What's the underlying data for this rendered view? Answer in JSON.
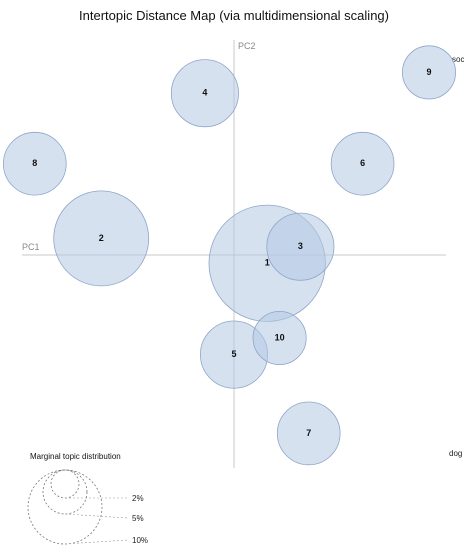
{
  "chart_data": {
    "type": "scatter",
    "title": "Intertopic Distance Map (via multidimensional scaling)",
    "xlabel": "PC1",
    "ylabel": "PC2",
    "xlim": [
      -0.27,
      0.27
    ],
    "ylim": [
      -0.27,
      0.27
    ],
    "edge_labels": [
      "soc",
      "dog"
    ],
    "topics": [
      {
        "label": "1",
        "x": 0.04,
        "y": -0.01,
        "size": 0.12
      },
      {
        "label": "2",
        "x": -0.16,
        "y": 0.02,
        "size": 0.08
      },
      {
        "label": "3",
        "x": 0.08,
        "y": 0.01,
        "size": 0.04
      },
      {
        "label": "4",
        "x": -0.035,
        "y": 0.195,
        "size": 0.04
      },
      {
        "label": "5",
        "x": 0.0,
        "y": -0.12,
        "size": 0.04
      },
      {
        "label": "6",
        "x": 0.155,
        "y": 0.11,
        "size": 0.035
      },
      {
        "label": "7",
        "x": 0.09,
        "y": -0.215,
        "size": 0.035
      },
      {
        "label": "8",
        "x": -0.24,
        "y": 0.11,
        "size": 0.035
      },
      {
        "label": "9",
        "x": 0.235,
        "y": 0.22,
        "size": 0.025
      },
      {
        "label": "10",
        "x": 0.055,
        "y": -0.1,
        "size": 0.025
      }
    ],
    "legend": {
      "title": "Marginal topic distribution",
      "levels": [
        "2%",
        "5%",
        "10%"
      ]
    }
  },
  "colors": {
    "bubble_fill": "#b4c8e4",
    "bubble_stroke": "#8ea6c8",
    "axis": "#c8c8c8"
  }
}
